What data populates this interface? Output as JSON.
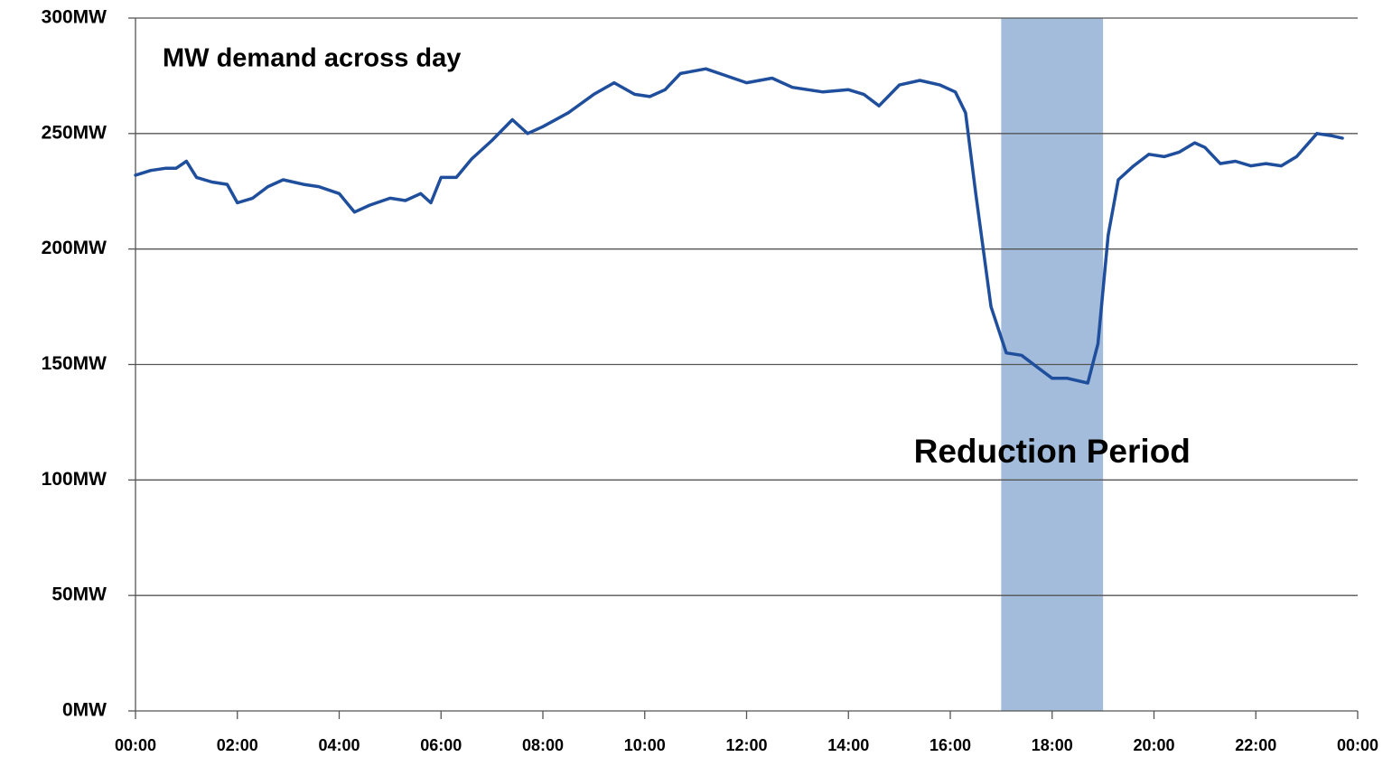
{
  "chart_data": {
    "type": "line",
    "title": "MW demand across day",
    "color": "#1f4e9c",
    "x": [
      0.0,
      0.3,
      0.6,
      0.8,
      1.0,
      1.2,
      1.5,
      1.8,
      2.0,
      2.3,
      2.6,
      2.9,
      3.3,
      3.6,
      4.0,
      4.3,
      4.6,
      5.0,
      5.3,
      5.6,
      5.8,
      6.0,
      6.3,
      6.6,
      7.0,
      7.4,
      7.7,
      8.0,
      8.5,
      9.0,
      9.4,
      9.8,
      10.1,
      10.4,
      10.7,
      11.2,
      11.6,
      12.0,
      12.5,
      12.9,
      13.5,
      14.0,
      14.3,
      14.6,
      15.0,
      15.4,
      15.8,
      16.1,
      16.3,
      16.5,
      16.8,
      17.1,
      17.4,
      17.7,
      18.0,
      18.3,
      18.7,
      18.9,
      19.1,
      19.3,
      19.6,
      19.9,
      20.2,
      20.5,
      20.8,
      21.0,
      21.3,
      21.6,
      21.9,
      22.2,
      22.5,
      22.8,
      23.2,
      23.5,
      23.7
    ],
    "values": [
      232,
      234,
      235,
      235,
      238,
      231,
      229,
      228,
      220,
      222,
      227,
      230,
      228,
      227,
      224,
      216,
      219,
      222,
      221,
      224,
      220,
      231,
      231,
      239,
      247,
      256,
      250,
      253,
      259,
      267,
      272,
      267,
      266,
      269,
      276,
      278,
      275,
      272,
      274,
      270,
      268,
      269,
      267,
      262,
      271,
      273,
      271,
      268,
      259,
      224,
      175,
      155,
      154,
      149,
      144,
      144,
      142,
      159,
      206,
      230,
      236,
      241,
      240,
      242,
      246,
      244,
      237,
      238,
      236,
      237,
      236,
      240,
      250,
      249,
      248
    ],
    "xlim": [
      0,
      24
    ],
    "xticks": [
      {
        "value": 0,
        "label": "00:00"
      },
      {
        "value": 2,
        "label": "02:00"
      },
      {
        "value": 4,
        "label": "04:00"
      },
      {
        "value": 6,
        "label": "06:00"
      },
      {
        "value": 8,
        "label": "08:00"
      },
      {
        "value": 10,
        "label": "10:00"
      },
      {
        "value": 12,
        "label": "12:00"
      },
      {
        "value": 14,
        "label": "14:00"
      },
      {
        "value": 16,
        "label": "16:00"
      },
      {
        "value": 18,
        "label": "18:00"
      },
      {
        "value": 20,
        "label": "20:00"
      },
      {
        "value": 22,
        "label": "22:00"
      },
      {
        "value": 24,
        "label": "00:00"
      }
    ],
    "ylim": [
      0,
      300
    ],
    "yticks": [
      {
        "value": 0,
        "label": "0MW"
      },
      {
        "value": 50,
        "label": "50MW"
      },
      {
        "value": 100,
        "label": "100MW"
      },
      {
        "value": 150,
        "label": "150MW"
      },
      {
        "value": 200,
        "label": "200MW"
      },
      {
        "value": 250,
        "label": "250MW"
      },
      {
        "value": 300,
        "label": "300MW"
      }
    ],
    "grid": true,
    "highlight": {
      "x": [
        17,
        19
      ],
      "color": "#a3bcdb",
      "label": "Reduction Period"
    }
  }
}
